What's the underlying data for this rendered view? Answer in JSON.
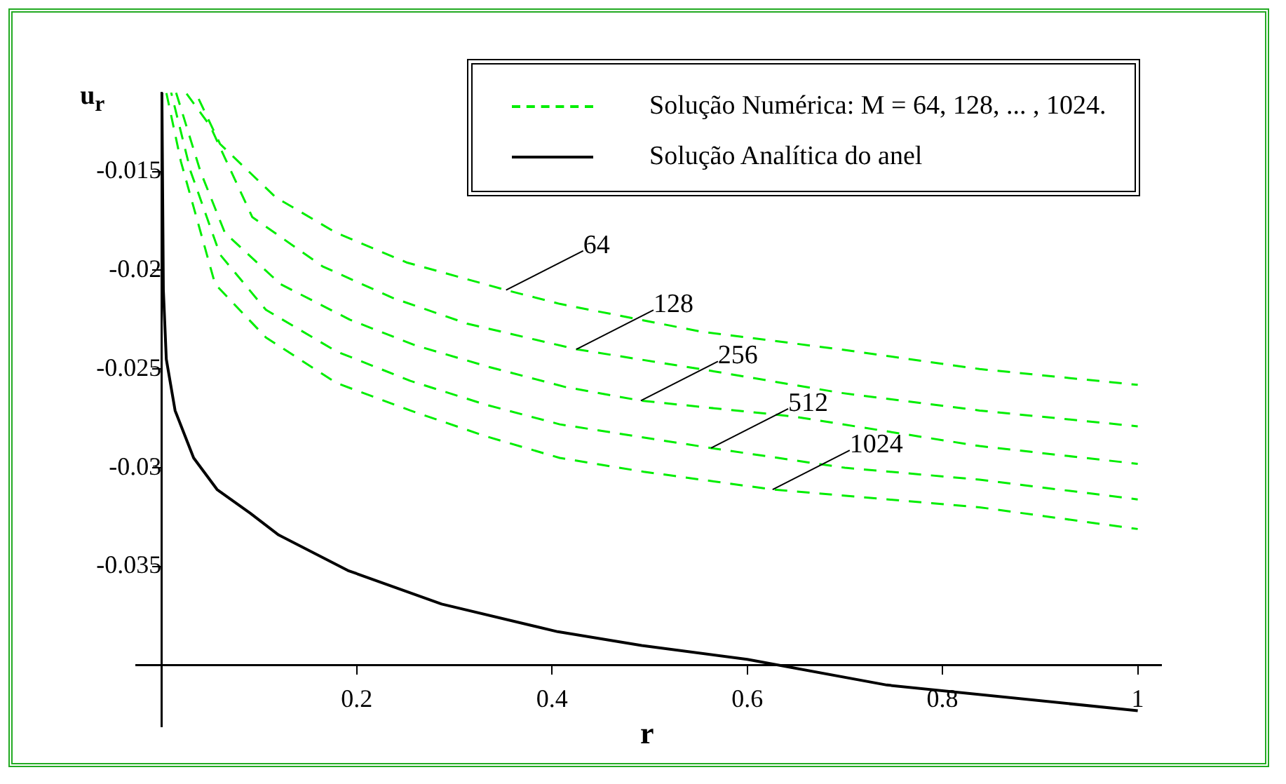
{
  "chart_data": {
    "type": "line",
    "xlabel": "r",
    "ylabel": "u$_{r}$",
    "xlim": [
      -0.026,
      1.024
    ],
    "ylim": [
      -0.0431,
      -0.011
    ],
    "xticks": [
      {
        "value": 0,
        "label": null
      },
      0.2,
      0.4,
      0.6,
      0.8,
      1
    ],
    "yticks": [
      -0.015,
      -0.02,
      -0.025,
      -0.03,
      -0.035,
      {
        "value": -0.04,
        "label": null
      }
    ],
    "grid": false,
    "legend": "top right",
    "marker": "none",
    "series": [
      {
        "color": "#00ee00",
        "line_style": "dashed",
        "x": [
          0.036,
          0.06,
          0.117,
          0.179,
          0.251,
          0.353,
          0.408,
          0.552,
          0.695,
          0.838,
          1
        ],
        "values": [
          -0.0111,
          -0.0136,
          -0.0163,
          -0.0181,
          -0.0196,
          -0.021,
          -0.0217,
          -0.0231,
          -0.024,
          -0.025,
          -0.0258
        ]
      },
      {
        "color": "#00ee00",
        "line_style": "dashed",
        "x": [
          0.025,
          0.05,
          0.093,
          0.165,
          0.237,
          0.313,
          0.425,
          0.552,
          0.695,
          0.838,
          1
        ],
        "values": [
          -0.011,
          -0.0127,
          -0.0173,
          -0.0198,
          -0.0214,
          -0.0227,
          -0.024,
          -0.025,
          -0.0262,
          -0.0271,
          -0.0279
        ]
      },
      {
        "color": "#00ee00",
        "line_style": "dashed",
        "x": [
          0.015,
          0.04,
          0.065,
          0.122,
          0.193,
          0.26,
          0.336,
          0.413,
          0.491,
          0.647,
          0.838,
          1
        ],
        "values": [
          -0.011,
          -0.015,
          -0.0181,
          -0.0207,
          -0.0225,
          -0.0238,
          -0.0249,
          -0.0259,
          -0.0266,
          -0.0274,
          -0.0289,
          -0.0298
        ]
      },
      {
        "color": "#00ee00",
        "line_style": "dashed",
        "x": [
          0.01,
          0.03,
          0.06,
          0.107,
          0.179,
          0.255,
          0.332,
          0.408,
          0.563,
          0.7,
          0.838,
          1
        ],
        "values": [
          -0.011,
          -0.015,
          -0.0192,
          -0.022,
          -0.0241,
          -0.0256,
          -0.0268,
          -0.0278,
          -0.029,
          -0.03,
          -0.0306,
          -0.0316
        ]
      },
      {
        "color": "#00ee00",
        "line_style": "dashed",
        "x": [
          0.005,
          0.02,
          0.055,
          0.107,
          0.179,
          0.255,
          0.332,
          0.408,
          0.494,
          0.626,
          0.838,
          1
        ],
        "values": [
          -0.011,
          -0.0145,
          -0.0207,
          -0.0234,
          -0.0257,
          -0.0271,
          -0.0284,
          -0.0295,
          -0.0302,
          -0.0311,
          -0.032,
          -0.0331
        ]
      },
      {
        "name": "Solução Analítica do anel",
        "color": "#000000",
        "line_style": "solid",
        "x": [
          0.0005,
          0.002,
          0.005,
          0.014,
          0.033,
          0.057,
          0.091,
          0.12,
          0.191,
          0.287,
          0.406,
          0.492,
          0.6,
          0.743,
          1
        ],
        "values": [
          -0.011,
          -0.021,
          -0.0245,
          -0.0271,
          -0.0295,
          -0.0311,
          -0.0323,
          -0.0334,
          -0.0352,
          -0.0369,
          -0.0383,
          -0.039,
          -0.0397,
          -0.041,
          -0.0423
        ]
      }
    ],
    "annotations": [
      "Solução Numérica: M = 64, 128, ... , 1024.",
      {
        "text": "64",
        "x": 0.353,
        "y": -0.021
      },
      {
        "text": "128",
        "x": 0.425,
        "y": -0.024
      },
      {
        "text": "256",
        "x": 0.491,
        "y": -0.0266
      },
      {
        "text": "512",
        "x": 0.563,
        "y": -0.029
      },
      {
        "text": "1024",
        "x": 0.626,
        "y": -0.0311
      }
    ]
  }
}
